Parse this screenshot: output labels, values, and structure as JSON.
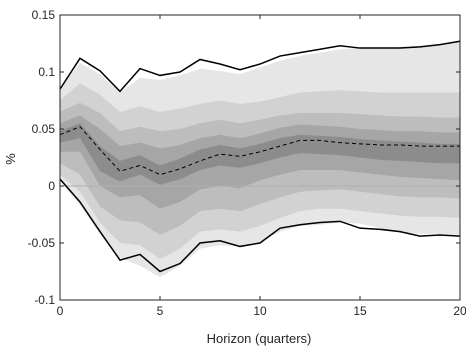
{
  "chart_data": {
    "type": "area",
    "title": "",
    "xlabel": "Horizon (quarters)",
    "ylabel": "%",
    "xlim": [
      0,
      20
    ],
    "ylim": [
      -0.1,
      0.15
    ],
    "xticks": [
      0,
      5,
      10,
      15,
      20
    ],
    "xtick_labels": [
      "0",
      "5",
      "10",
      "15",
      "20"
    ],
    "yticks": [
      -0.1,
      -0.05,
      0,
      0.05,
      0.1,
      0.15
    ],
    "ytick_labels": [
      "-0.1",
      "-0.05",
      "0",
      "0.05",
      "0.1",
      "0.15"
    ],
    "grid": false,
    "legend": false,
    "x": [
      0,
      1,
      2,
      3,
      4,
      5,
      6,
      7,
      8,
      9,
      10,
      11,
      12,
      13,
      14,
      15,
      16,
      17,
      18,
      19,
      20
    ],
    "bands": [
      {
        "color": "#e6e6e6",
        "upper": [
          0.085,
          0.108,
          0.098,
          0.082,
          0.095,
          0.093,
          0.097,
          0.103,
          0.101,
          0.098,
          0.104,
          0.11,
          0.114,
          0.117,
          0.12,
          0.121,
          0.121,
          0.122,
          0.123,
          0.124,
          0.127
        ],
        "lower": [
          0.005,
          -0.017,
          -0.042,
          -0.063,
          -0.07,
          -0.08,
          -0.07,
          -0.055,
          -0.052,
          -0.053,
          -0.05,
          -0.04,
          -0.035,
          -0.034,
          -0.032,
          -0.033,
          -0.037,
          -0.041,
          -0.042,
          -0.042,
          -0.043
        ]
      },
      {
        "color": "#d2d2d2",
        "upper": [
          0.075,
          0.09,
          0.08,
          0.065,
          0.07,
          0.065,
          0.068,
          0.072,
          0.075,
          0.072,
          0.074,
          0.078,
          0.082,
          0.083,
          0.084,
          0.083,
          0.082,
          0.082,
          0.082,
          0.082,
          0.082
        ],
        "lower": [
          0.01,
          -0.005,
          -0.032,
          -0.05,
          -0.052,
          -0.064,
          -0.055,
          -0.04,
          -0.038,
          -0.04,
          -0.035,
          -0.028,
          -0.022,
          -0.02,
          -0.02,
          -0.022,
          -0.024,
          -0.026,
          -0.027,
          -0.027,
          -0.028
        ]
      },
      {
        "color": "#bdbdbd",
        "upper": [
          0.065,
          0.073,
          0.064,
          0.048,
          0.052,
          0.048,
          0.05,
          0.055,
          0.058,
          0.055,
          0.058,
          0.062,
          0.064,
          0.064,
          0.064,
          0.063,
          0.062,
          0.061,
          0.061,
          0.06,
          0.06
        ],
        "lower": [
          0.02,
          0.01,
          -0.018,
          -0.03,
          -0.032,
          -0.043,
          -0.035,
          -0.022,
          -0.02,
          -0.022,
          -0.016,
          -0.01,
          -0.005,
          -0.004,
          -0.003,
          -0.005,
          -0.007,
          -0.009,
          -0.01,
          -0.01,
          -0.011
        ]
      },
      {
        "color": "#a6a6a6",
        "upper": [
          0.055,
          0.062,
          0.05,
          0.035,
          0.038,
          0.033,
          0.036,
          0.042,
          0.045,
          0.042,
          0.046,
          0.051,
          0.054,
          0.053,
          0.052,
          0.05,
          0.049,
          0.048,
          0.048,
          0.047,
          0.047
        ],
        "lower": [
          0.03,
          0.03,
          0.0,
          -0.01,
          -0.008,
          -0.02,
          -0.014,
          -0.003,
          0.0,
          -0.002,
          0.005,
          0.01,
          0.014,
          0.014,
          0.014,
          0.012,
          0.01,
          0.008,
          0.007,
          0.006,
          0.005
        ]
      },
      {
        "color": "#8c8c8c",
        "upper": [
          0.048,
          0.055,
          0.035,
          0.022,
          0.027,
          0.018,
          0.024,
          0.032,
          0.036,
          0.033,
          0.037,
          0.042,
          0.045,
          0.044,
          0.043,
          0.041,
          0.04,
          0.039,
          0.038,
          0.037,
          0.037
        ],
        "lower": [
          0.038,
          0.042,
          0.013,
          0.004,
          0.01,
          0.001,
          0.006,
          0.014,
          0.018,
          0.016,
          0.02,
          0.025,
          0.029,
          0.028,
          0.027,
          0.025,
          0.023,
          0.022,
          0.021,
          0.02,
          0.02
        ]
      }
    ],
    "series": [
      {
        "style": "dashed",
        "color": "#000000",
        "values": [
          0.045,
          0.052,
          0.032,
          0.013,
          0.018,
          0.01,
          0.015,
          0.022,
          0.028,
          0.026,
          0.03,
          0.035,
          0.04,
          0.04,
          0.038,
          0.037,
          0.036,
          0.036,
          0.035,
          0.035,
          0.035
        ]
      },
      {
        "style": "solid",
        "color": "#000000",
        "values": [
          0.085,
          0.112,
          0.101,
          0.083,
          0.103,
          0.097,
          0.1,
          0.111,
          0.107,
          0.102,
          0.107,
          0.114,
          0.117,
          0.12,
          0.123,
          0.121,
          0.121,
          0.121,
          0.122,
          0.124,
          0.127
        ]
      },
      {
        "style": "solid",
        "color": "#000000",
        "values": [
          0.006,
          -0.014,
          -0.04,
          -0.065,
          -0.06,
          -0.075,
          -0.068,
          -0.05,
          -0.048,
          -0.053,
          -0.05,
          -0.037,
          -0.034,
          -0.032,
          -0.031,
          -0.037,
          -0.038,
          -0.04,
          -0.044,
          -0.043,
          -0.044
        ]
      }
    ],
    "reference_line": {
      "y": 0,
      "color": "#b0b0b0"
    },
    "axes_color": "#262626"
  }
}
